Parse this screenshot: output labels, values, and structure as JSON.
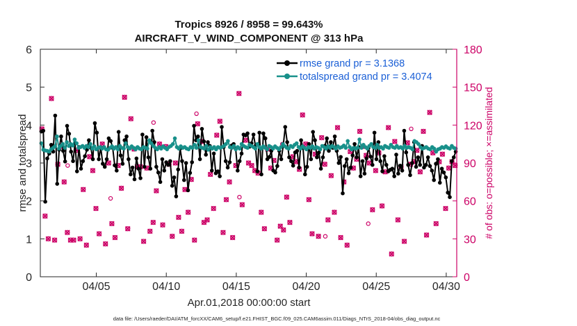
{
  "chart_data": {
    "type": "line",
    "title": "Tropics 8926 / 8958 = 99.643%",
    "subtitle": "AIRCRAFT_V_WIND_COMPONENT @ 313 hPa",
    "xlabel": "Apr.01,2018 00:00:00 start",
    "ylabel": "rmse and totalspread",
    "ylabel_right": "# of obs: o=possible; ×=assimilated",
    "x_ticks": [
      "04/05",
      "04/10",
      "04/15",
      "04/20",
      "04/25",
      "04/30"
    ],
    "x_tick_days": [
      5,
      10,
      15,
      20,
      25,
      30
    ],
    "xlim": [
      1,
      30.75
    ],
    "ylim": [
      0,
      6
    ],
    "y_ticks": [
      "0",
      "1",
      "2",
      "3",
      "4",
      "5",
      "6"
    ],
    "ylim_right": [
      0,
      180
    ],
    "y_ticks_right": [
      "0",
      "30",
      "60",
      "90",
      "120",
      "150",
      "180"
    ],
    "legend_position": "top-right",
    "series": [
      {
        "name": "rmse grand pr = 3.1368",
        "color": "#000000",
        "axis": "left",
        "marker": "circle",
        "values": [
          3.83,
          3.85,
          1.98,
          3.12,
          3.25,
          3.48,
          3.3,
          4.25,
          2.45,
          3.35,
          3.7,
          3.32,
          3.04,
          3.98,
          3.77,
          3.3,
          3.05,
          3.52,
          2.78,
          3.42,
          2.85,
          3.05,
          3.18,
          3.35,
          3.6,
          3.4,
          3.1,
          4.05,
          3.8,
          3.1,
          3.4,
          2.98,
          2.9,
          3.1,
          3.65,
          3.58,
          3.4,
          2.94,
          2.8,
          3.82,
          3.2,
          2.98,
          3.6,
          3.7,
          3.1,
          2.7,
          2.88,
          2.57,
          3.12,
          2.85,
          2.6,
          3.75,
          2.9,
          3.68,
          3.15,
          2.85,
          3.85,
          3.55,
          2.9,
          2.75,
          2.5,
          3.1,
          2.8,
          3.02,
          2.95,
          3.05,
          2.4,
          2.62,
          2.12,
          2.83,
          3.38,
          3.05,
          2.55,
          3.0,
          2.28,
          2.74,
          3.02,
          3.98,
          3.6,
          3.7,
          3.1,
          3.9,
          3.57,
          3.22,
          3.55,
          3.45,
          2.8,
          3.25,
          2.73,
          2.78,
          2.65,
          3.95,
          3.42,
          3.05,
          2.88,
          3.02,
          3.46,
          3.5,
          3.38,
          2.8,
          3.05,
          3.25,
          3.75,
          3.73,
          3.78,
          3.43,
          3.52,
          3.75,
          3.45,
          2.78,
          3.8,
          2.7,
          3.78,
          3.65,
          3.1,
          3.16,
          3.32,
          2.8,
          2.75,
          2.92,
          3.32,
          3.1,
          3.45,
          3.95,
          3.55,
          3.15,
          3.05,
          2.93,
          3.28,
          3.32,
          2.88,
          3.6,
          3.4,
          2.7,
          2.9,
          3.5,
          3.1,
          3.82,
          3.6,
          3.15,
          3.28,
          2.85,
          3.15,
          3.45,
          3.65,
          3.32,
          3.55,
          3.4,
          3.7,
          3.32,
          3.0,
          3.16,
          2.2,
          2.92,
          3.1,
          2.73,
          2.88,
          3.2,
          3.5,
          3.15,
          3.42,
          2.65,
          3.05,
          2.72,
          3.12,
          3.4,
          3.17,
          2.95,
          3.8,
          3.1,
          3.55,
          3.05,
          2.78,
          3.18,
          2.95,
          2.78,
          2.82,
          2.85,
          2.65,
          3.22,
          2.72,
          2.93,
          2.8,
          3.85,
          3.28,
          2.95,
          2.68,
          3.0,
          3.55,
          2.9,
          3.15,
          2.95,
          3.45,
          2.88,
          2.95,
          3.15,
          2.92,
          2.8,
          2.55,
          2.98,
          3.1,
          2.48,
          2.85,
          2.75,
          2.62,
          2.22,
          2.1,
          3.05,
          3.15,
          3.3
        ]
      },
      {
        "name": "totalspread grand pr = 3.4074",
        "color": "#18908a",
        "axis": "left",
        "marker": "circle",
        "values": [
          3.52,
          3.35,
          3.33,
          3.32,
          3.3,
          3.36,
          3.4,
          3.44,
          3.7,
          3.38,
          3.45,
          3.5,
          3.4,
          3.55,
          3.45,
          3.5,
          3.46,
          3.62,
          3.52,
          3.4,
          3.42,
          3.45,
          3.4,
          3.45,
          3.42,
          3.5,
          3.38,
          3.44,
          3.36,
          3.4,
          3.42,
          3.38,
          3.42,
          3.36,
          3.35,
          3.4,
          3.44,
          3.38,
          3.42,
          3.36,
          3.45,
          3.4,
          3.38,
          3.52,
          3.42,
          3.38,
          3.44,
          3.4,
          3.36,
          3.42,
          3.38,
          3.36,
          3.42,
          3.4,
          3.38,
          3.6,
          3.52,
          3.45,
          3.4,
          3.36,
          3.42,
          3.38,
          3.44,
          3.4,
          3.36,
          3.42,
          3.45,
          3.5,
          3.65,
          3.42,
          3.38,
          3.44,
          3.4,
          3.42,
          3.38,
          3.36,
          3.42,
          3.4,
          3.48,
          3.4,
          3.6,
          3.42,
          3.4,
          3.38,
          3.45,
          3.35,
          3.42,
          3.38,
          3.42,
          3.36,
          3.42,
          3.4,
          3.42,
          3.45,
          3.5,
          3.58,
          3.42,
          3.4,
          3.45,
          3.36,
          3.42,
          3.38,
          3.5,
          3.45,
          3.42,
          3.4,
          3.48,
          3.45,
          3.42,
          3.38,
          3.5,
          3.42,
          3.38,
          3.44,
          3.4,
          3.36,
          3.45,
          3.42,
          3.38,
          3.44,
          3.4,
          3.36,
          3.42,
          3.5,
          3.44,
          3.4,
          3.38,
          3.45,
          3.42,
          3.48,
          3.52,
          3.42,
          3.38,
          3.44,
          3.4,
          3.36,
          3.42,
          3.4,
          3.44,
          3.38,
          3.42,
          3.4,
          3.36,
          3.45,
          3.42,
          3.38,
          3.44,
          3.4,
          3.45,
          3.42,
          3.38,
          3.44,
          3.4,
          3.42,
          3.46,
          3.4,
          3.58,
          3.42,
          3.36,
          3.4,
          3.38,
          3.4,
          3.62,
          3.4,
          3.48,
          3.42,
          3.38,
          3.45,
          3.5,
          3.42,
          3.4,
          3.48,
          3.4,
          3.42,
          3.38,
          3.45,
          3.42,
          3.4,
          3.48,
          3.42,
          3.4,
          3.45,
          3.4,
          3.42,
          3.38,
          3.45,
          3.4,
          3.42,
          3.4,
          3.36,
          3.58,
          3.55,
          3.5,
          3.42,
          3.38,
          3.4,
          3.42,
          3.38,
          3.36,
          3.42,
          3.38,
          3.3,
          3.36,
          3.38,
          3.42,
          3.4,
          3.44,
          3.4,
          3.38,
          3.45,
          3.4,
          3.38
        ]
      }
    ],
    "obs_right_axis": {
      "assimilated_color": "#cc0066",
      "possible_extra": [
        88,
        62,
        122,
        129,
        63,
        105,
        32,
        42,
        117
      ],
      "assimilated": [
        117,
        48,
        30,
        141,
        29,
        89,
        103,
        75,
        35,
        29,
        29,
        100,
        30,
        69,
        25,
        95,
        84,
        54,
        34,
        105,
        26,
        90,
        42,
        31,
        88,
        70,
        142,
        38,
        125,
        101,
        87,
        87,
        28,
        86,
        36,
        43,
        68,
        105,
        41,
        103,
        89,
        32,
        90,
        47,
        36,
        69,
        51,
        77,
        29,
        121,
        107,
        43,
        45,
        81,
        54,
        112,
        123,
        35,
        61,
        75,
        31,
        88,
        145,
        57,
        108,
        90,
        88,
        84,
        82,
        51,
        38,
        101,
        86,
        92,
        29,
        40,
        37,
        63,
        43,
        95,
        91,
        85,
        128,
        105,
        61,
        34,
        97,
        32,
        110,
        89,
        45,
        80,
        51,
        118,
        31,
        75,
        25,
        99,
        86,
        93,
        115,
        103,
        96,
        90,
        53,
        84,
        98,
        56,
        83,
        118,
        18,
        107,
        45,
        87,
        28,
        106,
        89,
        91,
        100,
        83,
        115,
        33,
        130,
        98,
        42,
        91,
        97,
        54,
        86,
        91,
        88
      ]
    },
    "footer": "data file: /Users/raeder/DAI/ATM_forcXX/CAM6_setup/f.e21.FHIST_BGC.f09_025.CAM6assim.011/Diags_NTrS_2018-04/obs_diag_output.nc"
  }
}
